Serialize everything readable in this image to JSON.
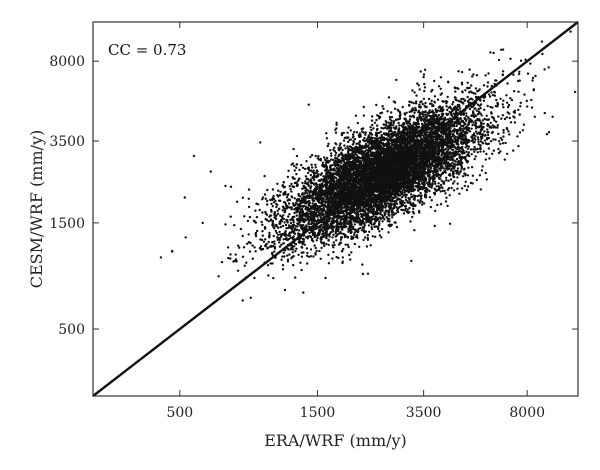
{
  "chart_data": {
    "type": "scatter",
    "xlabel": "ERA/WRF (mm/y)",
    "ylabel": "CESM/WRF (mm/y)",
    "xscale": "log",
    "yscale": "log",
    "xlim": [
      250,
      12000
    ],
    "ylim": [
      250,
      12000
    ],
    "xticks": [
      500,
      1500,
      3500,
      8000
    ],
    "yticks": [
      500,
      1500,
      3500,
      8000
    ],
    "xtick_labels": [
      "500",
      "1500",
      "3500",
      "8000"
    ],
    "ytick_labels": [
      "500",
      "1500",
      "3500",
      "8000"
    ],
    "annotation": "CC = 0.73",
    "grid": false,
    "reference_line": {
      "type": "1:1",
      "color": "#111111"
    },
    "point_color": "#111111",
    "cloud_center_mm_y": [
      2500,
      2500
    ],
    "correlation": 0.73,
    "approx_point_count": 9000,
    "outliers": [
      {
        "x": 430,
        "y": 1050
      },
      {
        "x": 470,
        "y": 1120
      },
      {
        "x": 520,
        "y": 1950
      },
      {
        "x": 560,
        "y": 3000
      },
      {
        "x": 600,
        "y": 1500
      },
      {
        "x": 640,
        "y": 2550
      },
      {
        "x": 700,
        "y": 1000
      },
      {
        "x": 720,
        "y": 2200
      },
      {
        "x": 950,
        "y": 3450
      },
      {
        "x": 1400,
        "y": 5100
      },
      {
        "x": 6500,
        "y": 9000
      },
      {
        "x": 7000,
        "y": 8200
      },
      {
        "x": 7500,
        "y": 7000
      },
      {
        "x": 8000,
        "y": 5000
      },
      {
        "x": 8500,
        "y": 4500
      },
      {
        "x": 9000,
        "y": 9800
      },
      {
        "x": 9500,
        "y": 7500
      },
      {
        "x": 9800,
        "y": 4500
      },
      {
        "x": 8200,
        "y": 7800
      },
      {
        "x": 6800,
        "y": 4000
      }
    ]
  }
}
